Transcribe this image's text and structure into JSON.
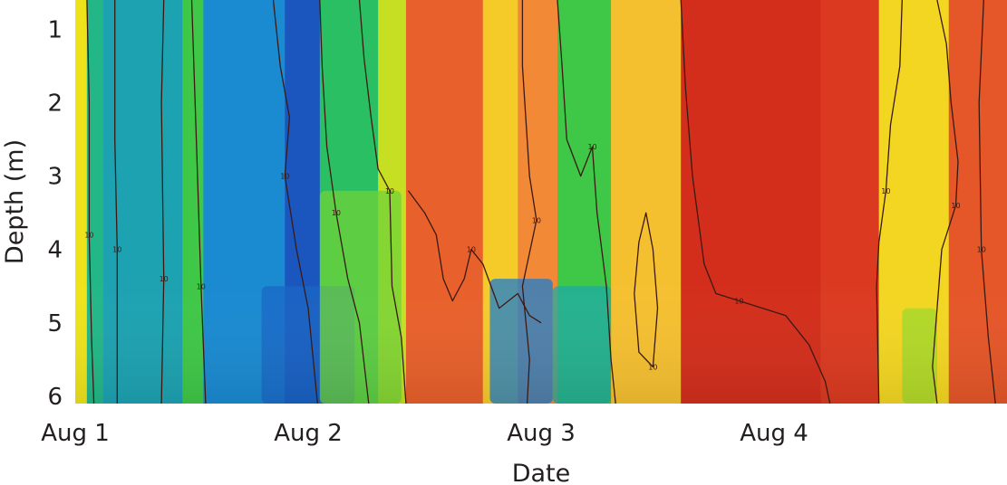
{
  "chart_data": {
    "type": "heatmap",
    "title": "",
    "xlabel": "Date",
    "ylabel": "Depth (m)",
    "x_ticks": [
      "Aug 1",
      "Aug 2",
      "Aug 3",
      "Aug 4"
    ],
    "x_tick_days": [
      1,
      2,
      3,
      4
    ],
    "xlim_days": [
      1,
      5
    ],
    "y_ticks": [
      1,
      2,
      3,
      4,
      5,
      6
    ],
    "ylim": [
      0.6,
      6.1
    ],
    "y_inverted": true,
    "grid": false,
    "legend": "none",
    "colormap": [
      "#1a2fa8",
      "#1a86d6",
      "#1fb39a",
      "#2fc44c",
      "#9ad92c",
      "#f2e41a",
      "#f7a640",
      "#ec6a2e",
      "#d9361f",
      "#c41a12"
    ],
    "contour_label": "10",
    "regions": [
      {
        "x": [
          1.0,
          1.05
        ],
        "tint": 0.55
      },
      {
        "x": [
          1.05,
          1.12
        ],
        "tint": 0.25
      },
      {
        "x": [
          1.12,
          1.46
        ],
        "tint": 0.18
      },
      {
        "x": [
          1.46,
          1.55
        ],
        "tint": 0.35
      },
      {
        "x": [
          1.55,
          1.9
        ],
        "tint": 0.12
      },
      {
        "x": [
          1.9,
          2.05
        ],
        "tint": 0.05
      },
      {
        "x": [
          2.05,
          2.3
        ],
        "tint": 0.3
      },
      {
        "x": [
          2.3,
          2.42
        ],
        "tint": 0.5
      },
      {
        "x": [
          2.42,
          2.75
        ],
        "tint": 0.8
      },
      {
        "x": [
          2.75,
          2.9
        ],
        "tint": 0.6
      },
      {
        "x": [
          2.9,
          3.07
        ],
        "tint": 0.72
      },
      {
        "x": [
          3.07,
          3.3
        ],
        "tint": 0.35
      },
      {
        "x": [
          3.3,
          3.6
        ],
        "tint": 0.62
      },
      {
        "x": [
          3.6,
          4.2
        ],
        "tint": 0.92
      },
      {
        "x": [
          4.2,
          4.45
        ],
        "tint": 0.88
      },
      {
        "x": [
          4.45,
          4.75
        ],
        "tint": 0.58
      },
      {
        "x": [
          4.75,
          5.0
        ],
        "tint": 0.82
      }
    ],
    "patches": [
      {
        "x": [
          1.8,
          2.2
        ],
        "depth": [
          4.5,
          6.1
        ],
        "tint": 0.07
      },
      {
        "x": [
          2.78,
          3.05
        ],
        "depth": [
          4.4,
          6.1
        ],
        "tint": 0.1
      },
      {
        "x": [
          3.05,
          3.3
        ],
        "depth": [
          4.5,
          6.1
        ],
        "tint": 0.2
      },
      {
        "x": [
          2.05,
          2.4
        ],
        "depth": [
          3.2,
          6.1
        ],
        "tint": 0.4
      },
      {
        "x": [
          4.55,
          4.7
        ],
        "depth": [
          4.8,
          6.1
        ],
        "tint": 0.45
      }
    ],
    "contour_lines": [
      [
        [
          1.05,
          0.6
        ],
        [
          1.06,
          2.0
        ],
        [
          1.06,
          3.8
        ],
        [
          1.07,
          5.2
        ],
        [
          1.08,
          6.1
        ]
      ],
      [
        [
          1.17,
          0.6
        ],
        [
          1.17,
          2.5
        ],
        [
          1.18,
          4.0
        ],
        [
          1.18,
          6.1
        ]
      ],
      [
        [
          1.38,
          0.6
        ],
        [
          1.37,
          2.0
        ],
        [
          1.38,
          4.4
        ],
        [
          1.37,
          6.1
        ]
      ],
      [
        [
          1.5,
          0.6
        ],
        [
          1.52,
          2.5
        ],
        [
          1.54,
          4.5
        ],
        [
          1.56,
          6.1
        ]
      ],
      [
        [
          1.85,
          0.6
        ],
        [
          1.88,
          1.5
        ],
        [
          1.92,
          2.2
        ],
        [
          1.9,
          3.0
        ],
        [
          1.95,
          4.0
        ],
        [
          2.0,
          4.8
        ],
        [
          2.04,
          6.1
        ]
      ],
      [
        [
          2.05,
          0.6
        ],
        [
          2.06,
          1.5
        ],
        [
          2.08,
          2.6
        ],
        [
          2.12,
          3.5
        ],
        [
          2.17,
          4.4
        ],
        [
          2.22,
          5.0
        ],
        [
          2.26,
          6.1
        ]
      ],
      [
        [
          2.22,
          0.6
        ],
        [
          2.24,
          1.4
        ],
        [
          2.27,
          2.2
        ],
        [
          2.3,
          2.9
        ],
        [
          2.35,
          3.2
        ],
        [
          2.36,
          4.5
        ],
        [
          2.4,
          5.2
        ],
        [
          2.42,
          6.1
        ]
      ],
      [
        [
          2.43,
          3.2
        ],
        [
          2.5,
          3.5
        ],
        [
          2.55,
          3.8
        ],
        [
          2.58,
          4.4
        ],
        [
          2.62,
          4.7
        ],
        [
          2.67,
          4.4
        ],
        [
          2.7,
          4.0
        ],
        [
          2.75,
          4.2
        ],
        [
          2.82,
          4.8
        ],
        [
          2.9,
          4.6
        ],
        [
          2.95,
          4.9
        ],
        [
          3.0,
          5.0
        ]
      ],
      [
        [
          2.92,
          0.6
        ],
        [
          2.92,
          1.5
        ],
        [
          2.94,
          2.5
        ],
        [
          2.95,
          3.0
        ],
        [
          2.98,
          3.6
        ],
        [
          2.92,
          4.5
        ],
        [
          2.95,
          5.5
        ],
        [
          2.94,
          6.1
        ]
      ],
      [
        [
          3.07,
          0.6
        ],
        [
          3.09,
          1.5
        ],
        [
          3.11,
          2.5
        ],
        [
          3.17,
          3.0
        ],
        [
          3.22,
          2.6
        ],
        [
          3.24,
          3.5
        ],
        [
          3.28,
          4.5
        ],
        [
          3.3,
          5.5
        ],
        [
          3.32,
          6.1
        ]
      ],
      [
        [
          3.42,
          3.9
        ],
        [
          3.45,
          3.5
        ],
        [
          3.48,
          4.0
        ],
        [
          3.5,
          4.8
        ],
        [
          3.48,
          5.6
        ],
        [
          3.42,
          5.4
        ],
        [
          3.4,
          4.6
        ],
        [
          3.42,
          3.9
        ]
      ],
      [
        [
          3.6,
          0.6
        ],
        [
          3.62,
          1.8
        ],
        [
          3.65,
          3.0
        ],
        [
          3.7,
          4.2
        ],
        [
          3.75,
          4.6
        ],
        [
          3.85,
          4.7
        ],
        [
          3.95,
          4.8
        ],
        [
          4.05,
          4.9
        ],
        [
          4.15,
          5.3
        ],
        [
          4.22,
          5.8
        ],
        [
          4.24,
          6.1
        ]
      ],
      [
        [
          4.55,
          0.6
        ],
        [
          4.54,
          1.5
        ],
        [
          4.5,
          2.3
        ],
        [
          4.48,
          3.2
        ],
        [
          4.45,
          3.9
        ],
        [
          4.44,
          4.5
        ],
        [
          4.45,
          6.1
        ]
      ],
      [
        [
          4.7,
          0.6
        ],
        [
          4.74,
          1.2
        ],
        [
          4.76,
          2.0
        ],
        [
          4.79,
          2.8
        ],
        [
          4.78,
          3.4
        ],
        [
          4.72,
          4.0
        ],
        [
          4.7,
          4.8
        ],
        [
          4.68,
          5.6
        ],
        [
          4.7,
          6.1
        ]
      ],
      [
        [
          4.9,
          0.6
        ],
        [
          4.88,
          2.0
        ],
        [
          4.89,
          4.0
        ],
        [
          4.92,
          5.2
        ],
        [
          4.95,
          6.1
        ]
      ]
    ]
  }
}
